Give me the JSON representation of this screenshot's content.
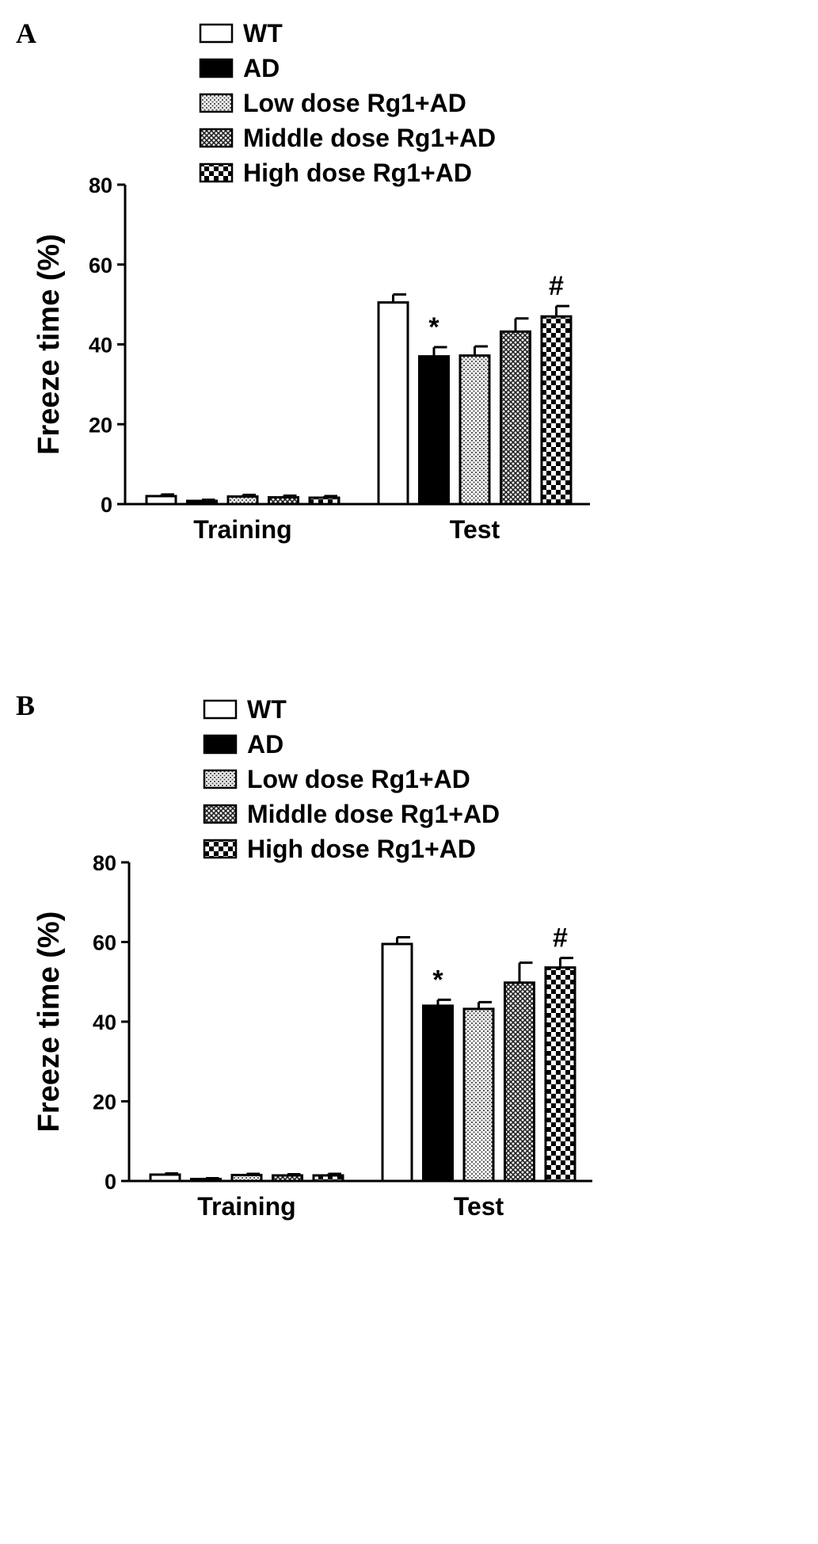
{
  "chart_data": [
    {
      "type": "bar",
      "panel_label": "A",
      "ylabel": "Freeze time (%)",
      "xlabel": "",
      "ylim": [
        0,
        80
      ],
      "yticks": [
        0,
        20,
        40,
        60,
        80
      ],
      "categories": [
        "Training",
        "Test"
      ],
      "legend_position": "top",
      "series": [
        {
          "name": "WT",
          "pattern": "white",
          "values": [
            2.0,
            50.5
          ],
          "errors": [
            0.4,
            2.0
          ]
        },
        {
          "name": "AD",
          "pattern": "black",
          "values": [
            0.8,
            37.0
          ],
          "errors": [
            0.3,
            2.3
          ]
        },
        {
          "name": "Low dose Rg1+AD",
          "pattern": "fine-dots",
          "values": [
            1.9,
            37.2
          ],
          "errors": [
            0.4,
            2.3
          ]
        },
        {
          "name": "Middle dose Rg1+AD",
          "pattern": "crosshatch",
          "values": [
            1.7,
            43.2
          ],
          "errors": [
            0.4,
            3.3
          ]
        },
        {
          "name": "High dose Rg1+AD",
          "pattern": "checker",
          "values": [
            1.6,
            47.0
          ],
          "errors": [
            0.4,
            2.6
          ]
        }
      ],
      "annotations": [
        {
          "text": "*",
          "category": "Test",
          "series": "AD"
        },
        {
          "text": "#",
          "category": "Test",
          "series": "High dose Rg1+AD"
        }
      ]
    },
    {
      "type": "bar",
      "panel_label": "B",
      "ylabel": "Freeze time (%)",
      "xlabel": "",
      "ylim": [
        0,
        80
      ],
      "yticks": [
        0,
        20,
        40,
        60,
        80
      ],
      "categories": [
        "Training",
        "Test"
      ],
      "legend_position": "top",
      "series": [
        {
          "name": "WT",
          "pattern": "white",
          "values": [
            1.6,
            59.5
          ],
          "errors": [
            0.3,
            1.7
          ]
        },
        {
          "name": "AD",
          "pattern": "black",
          "values": [
            0.5,
            44.0
          ],
          "errors": [
            0.2,
            1.5
          ]
        },
        {
          "name": "Low dose Rg1+AD",
          "pattern": "fine-dots",
          "values": [
            1.5,
            43.2
          ],
          "errors": [
            0.3,
            1.7
          ]
        },
        {
          "name": "Middle dose Rg1+AD",
          "pattern": "crosshatch",
          "values": [
            1.4,
            49.8
          ],
          "errors": [
            0.3,
            5.0
          ]
        },
        {
          "name": "High dose Rg1+AD",
          "pattern": "checker",
          "values": [
            1.4,
            53.6
          ],
          "errors": [
            0.4,
            2.4
          ]
        }
      ],
      "annotations": [
        {
          "text": "*",
          "category": "Test",
          "series": "AD"
        },
        {
          "text": "#",
          "category": "Test",
          "series": "High dose Rg1+AD"
        }
      ]
    }
  ]
}
